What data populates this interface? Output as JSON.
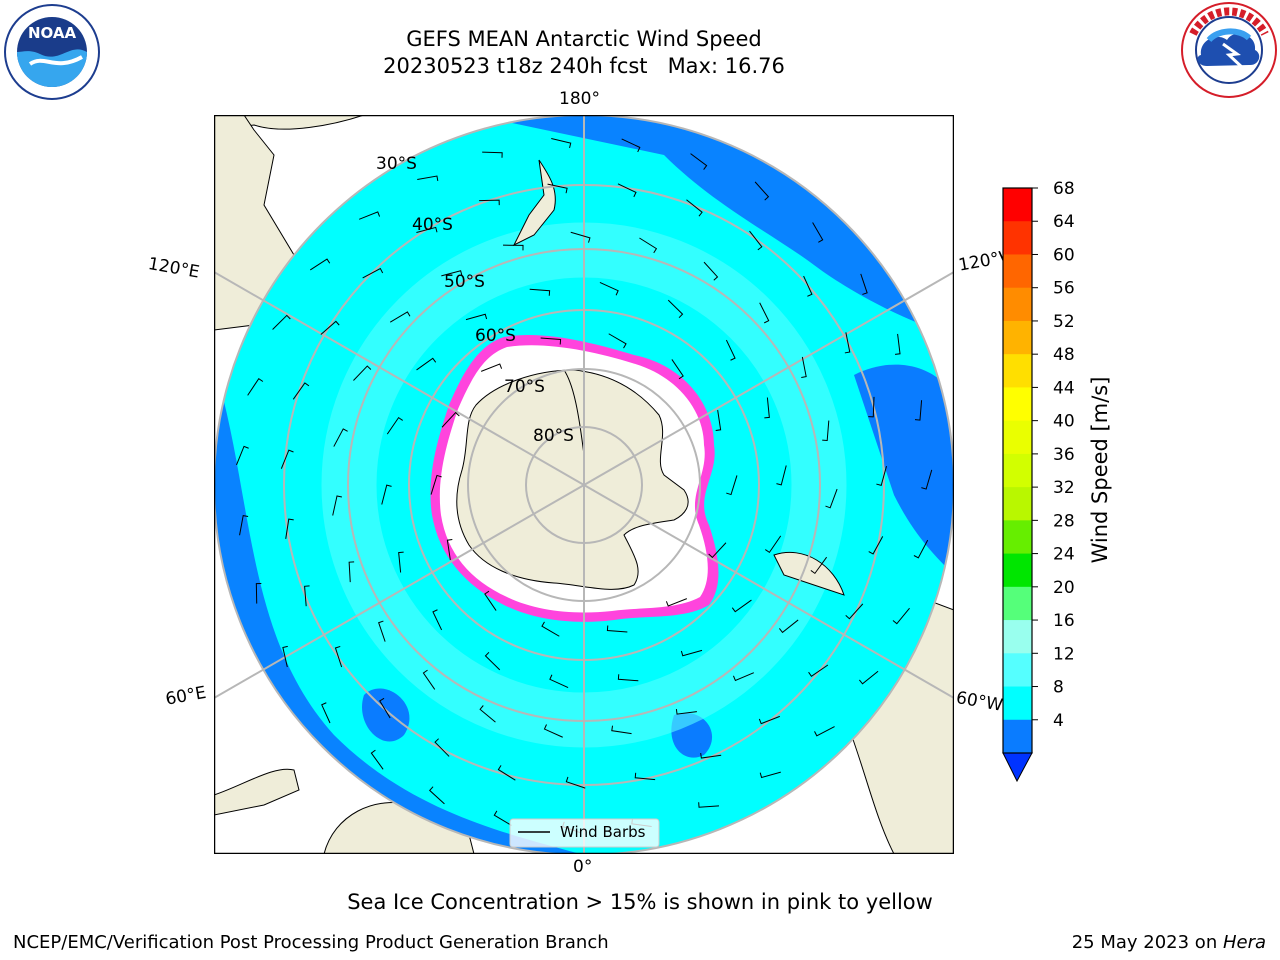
{
  "title": "GEFS MEAN Antarctic Wind Speed",
  "subtitle": "20230523 t18z 240h fcst   Max: 16.76",
  "caption": "Sea Ice Concentration > 15% is shown in pink to yellow",
  "footer": {
    "left": "NCEP/EMC/Verification Post Processing Product Generation Branch",
    "right_prefix": "25 May 2023 on ",
    "right_machine": "Hera"
  },
  "logos": {
    "left": {
      "text": "NOAA",
      "ring": "NATIONAL OCEANIC AND ATMOSPHERIC ADMINISTRATION",
      "ring_bottom": "U.S. DEPARTMENT OF COMMERCE"
    },
    "right": {
      "ring": "NATIONAL WEATHER SERVICE"
    }
  },
  "map": {
    "projection": "south-polar-stereographic",
    "longitude_labels": [
      "180°",
      "120°E",
      "120°W",
      "60°E",
      "60°W",
      "0°"
    ],
    "latitude_labels": [
      "30°S",
      "40°S",
      "50°S",
      "60°S",
      "70°S",
      "80°S"
    ],
    "legend_label": "Wind Barbs",
    "colors": {
      "land": "#efedd9",
      "grid": "#b7b7b7",
      "sea_ice_edge": "#ff44dd",
      "ice": "#ffffff"
    }
  },
  "colorbar": {
    "label": "Wind Speed [m/s]",
    "ticks": [
      "68",
      "64",
      "60",
      "56",
      "52",
      "48",
      "44",
      "40",
      "36",
      "32",
      "28",
      "24",
      "20",
      "16",
      "12",
      "8",
      "4"
    ],
    "colors": [
      "#ff0000",
      "#ff3300",
      "#ff6600",
      "#ff8c00",
      "#ffb300",
      "#ffdf00",
      "#ffff00",
      "#eaff00",
      "#d2ff00",
      "#b9f700",
      "#66ee00",
      "#00e600",
      "#55ff7a",
      "#99ffee",
      "#55ffff",
      "#00ffff",
      "#0a7cff"
    ],
    "under_color": "#0033ff"
  }
}
